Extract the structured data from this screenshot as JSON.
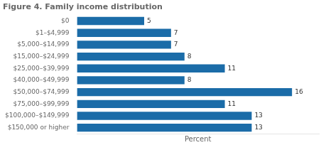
{
  "chart_data": {
    "type": "bar",
    "orientation": "horizontal",
    "title": "Figure 4. Family income distribution",
    "categories": [
      "$0",
      "$1–$4,999",
      "$5,000–$14,999",
      "$15,000–$24,999",
      "$25,000–$39,999",
      "$40,000–$49,999",
      "$50,000–$74,999",
      "$75,000–$99,999",
      "$100,000–$149,999",
      "$150,000 or higher"
    ],
    "values": [
      5,
      7,
      7,
      8,
      11,
      8,
      16,
      11,
      13,
      13
    ],
    "color": "#1b6ca8",
    "xlabel": "Percent",
    "xlim": [
      0,
      18
    ],
    "grid": false,
    "data_labels": true,
    "tick_labels": "y"
  }
}
